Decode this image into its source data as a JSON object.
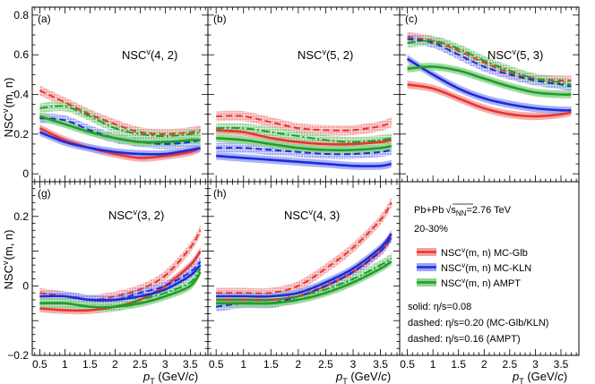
{
  "figure": {
    "ylabel_top": "NSC",
    "ylabel_bottom": "NSC",
    "ylabel_sup": "v",
    "ylabel_suffix": "(m, n)",
    "xlabel_p": "p",
    "xlabel_sub": "T",
    "xlabel_units": " (GeV/",
    "xlabel_c": "c",
    "xlabel_close": ")",
    "legend": {
      "system": "Pb+Pb",
      "energy_label": "s",
      "energy_sub": "NN",
      "energy_value": "=2.76 TeV",
      "centrality": "20-30%",
      "entries": [
        {
          "label": "NSC",
          "sup": "v",
          "suffix": "(m, n)  MC-Glb",
          "color": "#e8352f",
          "band": "#f4a0a0"
        },
        {
          "label": "NSC",
          "sup": "v",
          "suffix": "(m, n)  MC-KLN",
          "color": "#1d2bd9",
          "band": "#9aa4f4"
        },
        {
          "label": "NSC",
          "sup": "v",
          "suffix": "(m, n)  AMPT",
          "color": "#1e9e2a",
          "band": "#8fd48f"
        }
      ],
      "notes": [
        "solid: η/s=0.08",
        "dashed: η/s=0.20 (MC-Glb/KLN)",
        "dashed: η/s=0.16 (AMPT)"
      ]
    }
  },
  "chart_data": [
    {
      "type": "line",
      "panel": "(a)",
      "title": "NSC",
      "title_sup": "v",
      "title_suffix": "(4, 2)",
      "xlim": [
        0.35,
        3.85
      ],
      "ylim": [
        -0.04,
        0.84
      ],
      "xticks": [
        "0.5",
        "1",
        "1.5",
        "2",
        "2.5",
        "3",
        "3.5"
      ],
      "yticks": [
        "0",
        "0.2",
        "0.4",
        "0.6",
        "0.8"
      ],
      "x": [
        0.5,
        1.0,
        1.5,
        2.0,
        2.5,
        3.0,
        3.5,
        3.7
      ],
      "series": [
        {
          "name": "MC-Glb solid",
          "model": "Glb",
          "style": "solid",
          "values": [
            0.23,
            0.17,
            0.13,
            0.1,
            0.08,
            0.09,
            0.11,
            0.13
          ]
        },
        {
          "name": "MC-Glb dashed",
          "model": "Glb",
          "style": "dashed",
          "values": [
            0.42,
            0.36,
            0.3,
            0.25,
            0.21,
            0.2,
            0.21,
            0.22
          ]
        },
        {
          "name": "MC-KLN solid",
          "model": "KLN",
          "style": "solid",
          "values": [
            0.21,
            0.16,
            0.13,
            0.11,
            0.1,
            0.1,
            0.12,
            0.13
          ]
        },
        {
          "name": "MC-KLN dashed",
          "model": "KLN",
          "style": "dashed",
          "values": [
            0.28,
            0.27,
            0.22,
            0.18,
            0.16,
            0.15,
            0.16,
            0.17
          ]
        },
        {
          "name": "AMPT solid",
          "model": "AMPT",
          "style": "solid",
          "values": [
            0.29,
            0.25,
            0.21,
            0.18,
            0.16,
            0.16,
            0.17,
            0.17
          ]
        },
        {
          "name": "AMPT dashed",
          "model": "AMPT",
          "style": "dashed",
          "values": [
            0.33,
            0.34,
            0.29,
            0.23,
            0.2,
            0.19,
            0.2,
            0.21
          ]
        }
      ]
    },
    {
      "type": "line",
      "panel": "(b)",
      "title": "NSC",
      "title_sup": "v",
      "title_suffix": "(5, 2)",
      "xlim": [
        0.35,
        3.85
      ],
      "ylim": [
        -0.04,
        0.84
      ],
      "xticks": [
        "0.5",
        "1",
        "1.5",
        "2",
        "2.5",
        "3",
        "3.5"
      ],
      "yticks": [],
      "x": [
        0.5,
        1.0,
        1.5,
        2.0,
        2.5,
        3.0,
        3.5,
        3.7
      ],
      "series": [
        {
          "name": "MC-Glb solid",
          "model": "Glb",
          "style": "solid",
          "values": [
            0.22,
            0.21,
            0.18,
            0.16,
            0.15,
            0.15,
            0.16,
            0.17
          ]
        },
        {
          "name": "MC-Glb dashed",
          "model": "Glb",
          "style": "dashed",
          "values": [
            0.29,
            0.29,
            0.26,
            0.23,
            0.22,
            0.22,
            0.24,
            0.26
          ]
        },
        {
          "name": "MC-KLN solid",
          "model": "KLN",
          "style": "solid",
          "values": [
            0.09,
            0.08,
            0.07,
            0.06,
            0.05,
            0.04,
            0.04,
            0.05
          ]
        },
        {
          "name": "MC-KLN dashed",
          "model": "KLN",
          "style": "dashed",
          "values": [
            0.13,
            0.13,
            0.12,
            0.11,
            0.1,
            0.1,
            0.11,
            0.12
          ]
        },
        {
          "name": "AMPT solid",
          "model": "AMPT",
          "style": "solid",
          "values": [
            0.18,
            0.17,
            0.15,
            0.13,
            0.12,
            0.12,
            0.13,
            0.14
          ]
        },
        {
          "name": "AMPT dashed",
          "model": "AMPT",
          "style": "dashed",
          "values": [
            0.23,
            0.23,
            0.21,
            0.19,
            0.17,
            0.16,
            0.17,
            0.18
          ]
        }
      ]
    },
    {
      "type": "line",
      "panel": "(c)",
      "title": "NSC",
      "title_sup": "v",
      "title_suffix": "(5, 3)",
      "xlim": [
        0.35,
        3.85
      ],
      "ylim": [
        -0.04,
        0.84
      ],
      "xticks": [
        "0.5",
        "1",
        "1.5",
        "2",
        "2.5",
        "3",
        "3.5"
      ],
      "yticks": [],
      "x": [
        0.5,
        1.0,
        1.5,
        2.0,
        2.5,
        3.0,
        3.5,
        3.7
      ],
      "series": [
        {
          "name": "MC-Glb solid",
          "model": "Glb",
          "style": "solid",
          "values": [
            0.45,
            0.43,
            0.38,
            0.33,
            0.3,
            0.29,
            0.3,
            0.31
          ]
        },
        {
          "name": "MC-Glb dashed",
          "model": "Glb",
          "style": "dashed",
          "values": [
            0.69,
            0.67,
            0.62,
            0.56,
            0.51,
            0.48,
            0.47,
            0.47
          ]
        },
        {
          "name": "MC-KLN solid",
          "model": "KLN",
          "style": "solid",
          "values": [
            0.58,
            0.5,
            0.43,
            0.38,
            0.35,
            0.33,
            0.32,
            0.32
          ]
        },
        {
          "name": "MC-KLN dashed",
          "model": "KLN",
          "style": "dashed",
          "values": [
            0.68,
            0.66,
            0.6,
            0.54,
            0.5,
            0.47,
            0.45,
            0.44
          ]
        },
        {
          "name": "AMPT solid",
          "model": "AMPT",
          "style": "solid",
          "values": [
            0.53,
            0.54,
            0.52,
            0.48,
            0.44,
            0.41,
            0.4,
            0.4
          ]
        },
        {
          "name": "AMPT dashed",
          "model": "AMPT",
          "style": "dashed",
          "values": [
            0.66,
            0.67,
            0.63,
            0.57,
            0.52,
            0.48,
            0.46,
            0.45
          ]
        }
      ]
    },
    {
      "type": "line",
      "panel": "(g)",
      "title": "NSC",
      "title_sup": "v",
      "title_suffix": "(3, 2)",
      "xlim": [
        0.35,
        3.85
      ],
      "ylim": [
        -0.2,
        0.3
      ],
      "xticks": [
        "0.5",
        "1",
        "1.5",
        "2",
        "2.5",
        "3",
        "3.5"
      ],
      "yticks": [
        "−0.2",
        "0",
        "0.2"
      ],
      "x": [
        0.5,
        1.0,
        1.5,
        2.0,
        2.5,
        3.0,
        3.5,
        3.7
      ],
      "series": [
        {
          "name": "MC-Glb solid",
          "model": "Glb",
          "style": "solid",
          "values": [
            -0.065,
            -0.07,
            -0.07,
            -0.06,
            -0.04,
            0.0,
            0.06,
            0.1
          ]
        },
        {
          "name": "MC-Glb dashed",
          "model": "Glb",
          "style": "dashed",
          "values": [
            -0.02,
            -0.03,
            -0.04,
            -0.03,
            -0.01,
            0.03,
            0.11,
            0.16
          ]
        },
        {
          "name": "MC-KLN solid",
          "model": "KLN",
          "style": "solid",
          "values": [
            -0.03,
            -0.03,
            -0.04,
            -0.04,
            -0.03,
            -0.01,
            0.03,
            0.06
          ]
        },
        {
          "name": "MC-KLN dashed",
          "model": "KLN",
          "style": "dashed",
          "values": [
            -0.03,
            -0.03,
            -0.04,
            -0.04,
            -0.02,
            0.0,
            0.04,
            0.07
          ]
        },
        {
          "name": "AMPT solid",
          "model": "AMPT",
          "style": "solid",
          "values": [
            -0.05,
            -0.05,
            -0.06,
            -0.06,
            -0.05,
            -0.03,
            0.0,
            0.04
          ]
        },
        {
          "name": "AMPT dashed",
          "model": "AMPT",
          "style": "dashed",
          "values": [
            -0.05,
            -0.05,
            -0.06,
            -0.06,
            -0.04,
            -0.02,
            0.01,
            0.05
          ]
        }
      ]
    },
    {
      "type": "line",
      "panel": "(h)",
      "title": "NSC",
      "title_sup": "v",
      "title_suffix": "(4, 3)",
      "xlim": [
        0.35,
        3.85
      ],
      "ylim": [
        -0.2,
        0.3
      ],
      "xticks": [
        "0.5",
        "1",
        "1.5",
        "2",
        "2.5",
        "3",
        "3.5"
      ],
      "yticks": [],
      "x": [
        0.5,
        1.0,
        1.5,
        2.0,
        2.5,
        3.0,
        3.5,
        3.7
      ],
      "series": [
        {
          "name": "MC-Glb solid",
          "model": "Glb",
          "style": "solid",
          "values": [
            -0.04,
            -0.04,
            -0.04,
            -0.03,
            0.0,
            0.04,
            0.1,
            0.14
          ]
        },
        {
          "name": "MC-Glb dashed",
          "model": "Glb",
          "style": "dashed",
          "values": [
            -0.02,
            -0.02,
            -0.02,
            0.0,
            0.05,
            0.11,
            0.19,
            0.24
          ]
        },
        {
          "name": "MC-KLN solid",
          "model": "KLN",
          "style": "solid",
          "values": [
            -0.03,
            -0.03,
            -0.03,
            -0.02,
            0.01,
            0.05,
            0.11,
            0.15
          ]
        },
        {
          "name": "MC-KLN dashed",
          "model": "KLN",
          "style": "dashed",
          "values": [
            -0.06,
            -0.05,
            -0.05,
            -0.03,
            0.0,
            0.04,
            0.1,
            0.14
          ]
        },
        {
          "name": "AMPT solid",
          "model": "AMPT",
          "style": "solid",
          "values": [
            -0.05,
            -0.05,
            -0.05,
            -0.04,
            -0.02,
            0.01,
            0.05,
            0.07
          ]
        },
        {
          "name": "AMPT dashed",
          "model": "AMPT",
          "style": "dashed",
          "values": [
            -0.04,
            -0.04,
            -0.04,
            -0.03,
            -0.01,
            0.02,
            0.06,
            0.08
          ]
        }
      ]
    }
  ]
}
